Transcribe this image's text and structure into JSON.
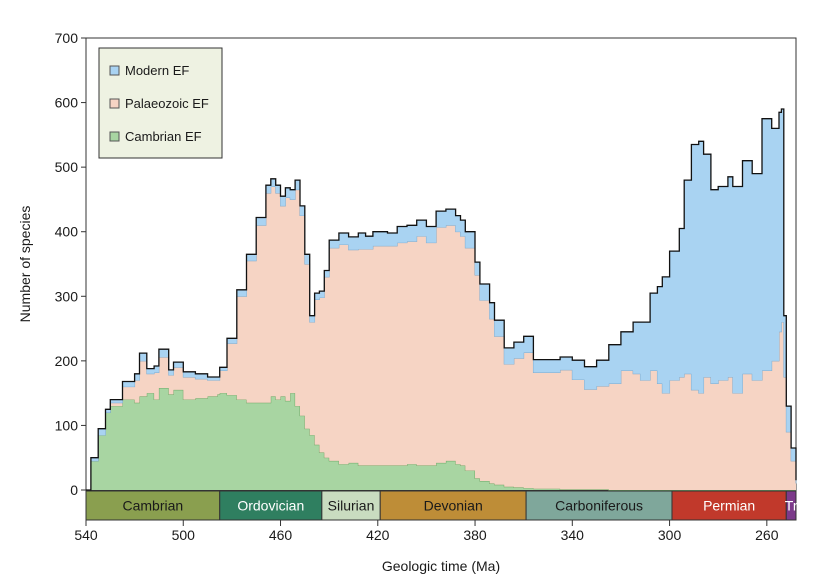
{
  "chart_data": {
    "type": "area",
    "title": "",
    "xlabel": "Geologic time (Ma)",
    "ylabel": "Number of species",
    "xlim": [
      540,
      248
    ],
    "ylim": [
      0,
      700
    ],
    "x_ticks": [
      540,
      500,
      460,
      420,
      380,
      340,
      300,
      260
    ],
    "y_ticks": [
      0,
      100,
      200,
      300,
      400,
      500,
      600,
      700
    ],
    "grid": false,
    "stacking": "stacked",
    "legend": {
      "position": "top-left",
      "entries": [
        "Modern EF",
        "Palaeozoic EF",
        "Cambrian EF"
      ]
    },
    "x": [
      540,
      538,
      535,
      532,
      530,
      525,
      520,
      518,
      515,
      512,
      510,
      506,
      504,
      500,
      495,
      490,
      486,
      485,
      482,
      478,
      474,
      470,
      466,
      464,
      462,
      460,
      458,
      456,
      454,
      452,
      450,
      448,
      446,
      444,
      442,
      440,
      436,
      432,
      428,
      425,
      422,
      420,
      416,
      412,
      408,
      404,
      400,
      396,
      392,
      388,
      386,
      384,
      380,
      378,
      374,
      372,
      368,
      364,
      360,
      356,
      350,
      345,
      340,
      335,
      330,
      325,
      320,
      315,
      312,
      308,
      305,
      303,
      300,
      296,
      294,
      291,
      288,
      286,
      283,
      280,
      276,
      274,
      270,
      266,
      262,
      258,
      255,
      254,
      253,
      252,
      250,
      248
    ],
    "series": [
      {
        "name": "Cambrian EF",
        "color": "#a8d5a2",
        "values": [
          0,
          45,
          85,
          120,
          130,
          140,
          135,
          145,
          150,
          140,
          158,
          148,
          155,
          140,
          142,
          145,
          148,
          150,
          147,
          140,
          135,
          135,
          135,
          145,
          140,
          145,
          138,
          150,
          130,
          115,
          95,
          85,
          70,
          58,
          50,
          45,
          40,
          42,
          38,
          38,
          38,
          38,
          38,
          38,
          40,
          38,
          38,
          42,
          45,
          40,
          38,
          30,
          18,
          14,
          10,
          8,
          5,
          4,
          3,
          2,
          2,
          1,
          1,
          1,
          1,
          0,
          0,
          0,
          0,
          0,
          0,
          0,
          0,
          0,
          0,
          0,
          0,
          0,
          0,
          0,
          0,
          0,
          0,
          0,
          0,
          0,
          0,
          0,
          0,
          0,
          0,
          0
        ]
      },
      {
        "name": "Palaeozoic EF",
        "color": "#f6d4c4",
        "values": [
          0,
          0,
          0,
          0,
          5,
          20,
          35,
          55,
          30,
          42,
          48,
          30,
          35,
          35,
          30,
          25,
          22,
          35,
          80,
          160,
          220,
          275,
          325,
          325,
          320,
          295,
          315,
          300,
          335,
          310,
          255,
          175,
          225,
          240,
          280,
          330,
          340,
          330,
          335,
          335,
          340,
          340,
          340,
          345,
          345,
          355,
          345,
          365,
          365,
          360,
          355,
          345,
          315,
          280,
          255,
          230,
          190,
          200,
          210,
          180,
          180,
          185,
          170,
          155,
          160,
          165,
          185,
          180,
          170,
          185,
          165,
          150,
          170,
          175,
          180,
          155,
          150,
          175,
          165,
          170,
          175,
          150,
          180,
          170,
          185,
          200,
          245,
          260,
          175,
          90,
          45,
          10
        ]
      },
      {
        "name": "Modern EF",
        "color": "#a9d3f2",
        "values": [
          0,
          5,
          10,
          5,
          5,
          8,
          10,
          12,
          8,
          10,
          12,
          8,
          8,
          8,
          8,
          5,
          5,
          5,
          8,
          10,
          10,
          12,
          12,
          12,
          12,
          15,
          15,
          15,
          15,
          15,
          15,
          10,
          10,
          10,
          10,
          12,
          18,
          20,
          25,
          20,
          22,
          22,
          20,
          25,
          25,
          25,
          25,
          25,
          25,
          25,
          25,
          25,
          20,
          25,
          25,
          25,
          25,
          25,
          25,
          20,
          20,
          20,
          30,
          35,
          40,
          60,
          60,
          80,
          90,
          120,
          150,
          180,
          200,
          230,
          300,
          380,
          390,
          345,
          300,
          300,
          310,
          320,
          330,
          320,
          390,
          360,
          340,
          330,
          95,
          40,
          20,
          5
        ]
      }
    ],
    "periods": [
      {
        "name": "Cambrian",
        "start": 540,
        "end": 485,
        "color": "#8a9f4f",
        "text_color": "#1a1a1a"
      },
      {
        "name": "Ordovician",
        "start": 485,
        "end": 443,
        "color": "#2f7f60",
        "text_color": "#ffffff"
      },
      {
        "name": "Silurian",
        "start": 443,
        "end": 419,
        "color": "#c9dcc0",
        "text_color": "#1a1a1a"
      },
      {
        "name": "Devonian",
        "start": 419,
        "end": 359,
        "color": "#be8d37",
        "text_color": "#1a1a1a"
      },
      {
        "name": "Carboniferous",
        "start": 359,
        "end": 299,
        "color": "#7fa79b",
        "text_color": "#1a1a1a"
      },
      {
        "name": "Permian",
        "start": 299,
        "end": 252,
        "color": "#c1392b",
        "text_color": "#ffffff"
      },
      {
        "name": "Tr",
        "start": 252,
        "end": 248,
        "color": "#7c3a8a",
        "text_color": "#ffffff"
      }
    ]
  }
}
